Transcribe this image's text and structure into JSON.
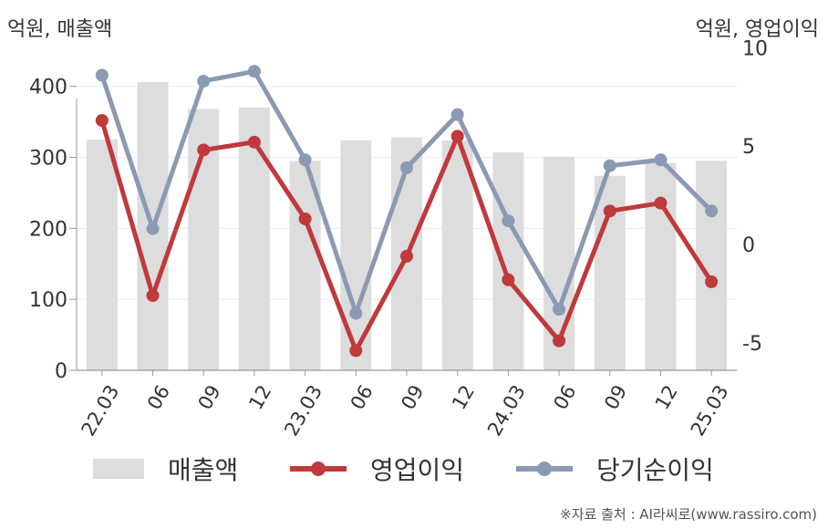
{
  "left_axis_title": "억원, 매출액",
  "right_axis_title": "억원, 영업이익",
  "source": "※자료 출처 : AI라씨로(www.rassiro.com)",
  "chart_data": {
    "type": "bar",
    "categories": [
      "22.03",
      "06",
      "09",
      "12",
      "23.03",
      "06",
      "09",
      "12",
      "24.03",
      "06",
      "09",
      "12",
      "25.03"
    ],
    "y_left": {
      "ticks": [
        0,
        100,
        200,
        300,
        400
      ],
      "lim": [
        0,
        460
      ]
    },
    "y_right": {
      "ticks": [
        -5,
        0,
        5,
        10
      ],
      "lim": [
        -6.4,
        10.2
      ]
    },
    "grid": true,
    "legend_position": "bottom",
    "series": [
      {
        "name": "매출액",
        "type": "bar",
        "axis": "left",
        "color": "#dddddd",
        "values": [
          325,
          406,
          368,
          370,
          295,
          324,
          328,
          324,
          307,
          301,
          274,
          292,
          295
        ]
      },
      {
        "name": "영업이익",
        "type": "line",
        "axis": "right",
        "color": "#c0393b",
        "values": [
          6.3,
          -2.6,
          4.8,
          5.2,
          1.3,
          -5.4,
          -0.6,
          5.5,
          -1.8,
          -4.9,
          1.7,
          2.1,
          -1.9
        ]
      },
      {
        "name": "당기순이익",
        "type": "line",
        "axis": "right",
        "color": "#8b9ab3",
        "values": [
          8.6,
          0.8,
          8.3,
          8.8,
          4.3,
          -3.5,
          3.9,
          6.6,
          1.2,
          -3.3,
          4.0,
          4.3,
          1.7
        ]
      }
    ]
  }
}
